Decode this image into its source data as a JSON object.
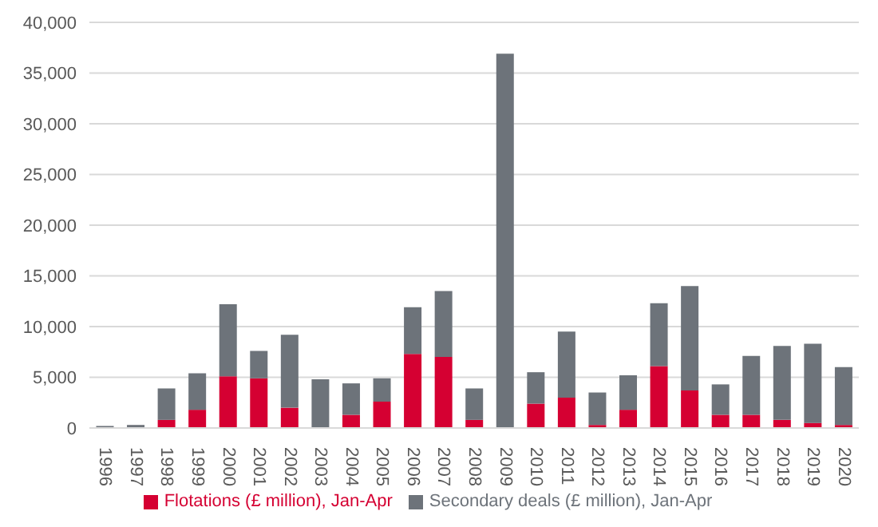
{
  "chart_data": {
    "type": "bar",
    "stacked": true,
    "categories": [
      "1996",
      "1997",
      "1998",
      "1999",
      "2000",
      "2001",
      "2002",
      "2003",
      "2004",
      "2005",
      "2006",
      "2007",
      "2008",
      "2009",
      "2010",
      "2011",
      "2012",
      "2013",
      "2014",
      "2015",
      "2016",
      "2017",
      "2018",
      "2019",
      "2020"
    ],
    "series": [
      {
        "name": "Flotations (£ million), Jan-Apr",
        "color": "#d50032",
        "values": [
          0,
          0,
          800,
          1800,
          5100,
          4900,
          2000,
          0,
          1300,
          2600,
          7300,
          7000,
          800,
          0,
          2400,
          3000,
          300,
          1800,
          6100,
          3700,
          1300,
          1300,
          800,
          500,
          300
        ]
      },
      {
        "name": "Secondary deals (£ million), Jan-Apr",
        "color": "#6d737a",
        "values": [
          200,
          300,
          3100,
          3600,
          7100,
          2700,
          7200,
          4800,
          3100,
          2300,
          4600,
          6500,
          3100,
          36900,
          3100,
          6500,
          3200,
          3400,
          6200,
          10300,
          3000,
          5800,
          7300,
          7800,
          5700
        ]
      }
    ],
    "ylim": [
      0,
      40000
    ],
    "yticks": [
      {
        "value": 0,
        "label": "0"
      },
      {
        "value": 5000,
        "label": "5,000"
      },
      {
        "value": 10000,
        "label": "10,000"
      },
      {
        "value": 15000,
        "label": "15,000"
      },
      {
        "value": 20000,
        "label": "20,000"
      },
      {
        "value": 25000,
        "label": "25,000"
      },
      {
        "value": 30000,
        "label": "30,000"
      },
      {
        "value": 35000,
        "label": "35,000"
      },
      {
        "value": 40000,
        "label": "40,000"
      }
    ],
    "grid": "y",
    "legend": "bottom"
  }
}
